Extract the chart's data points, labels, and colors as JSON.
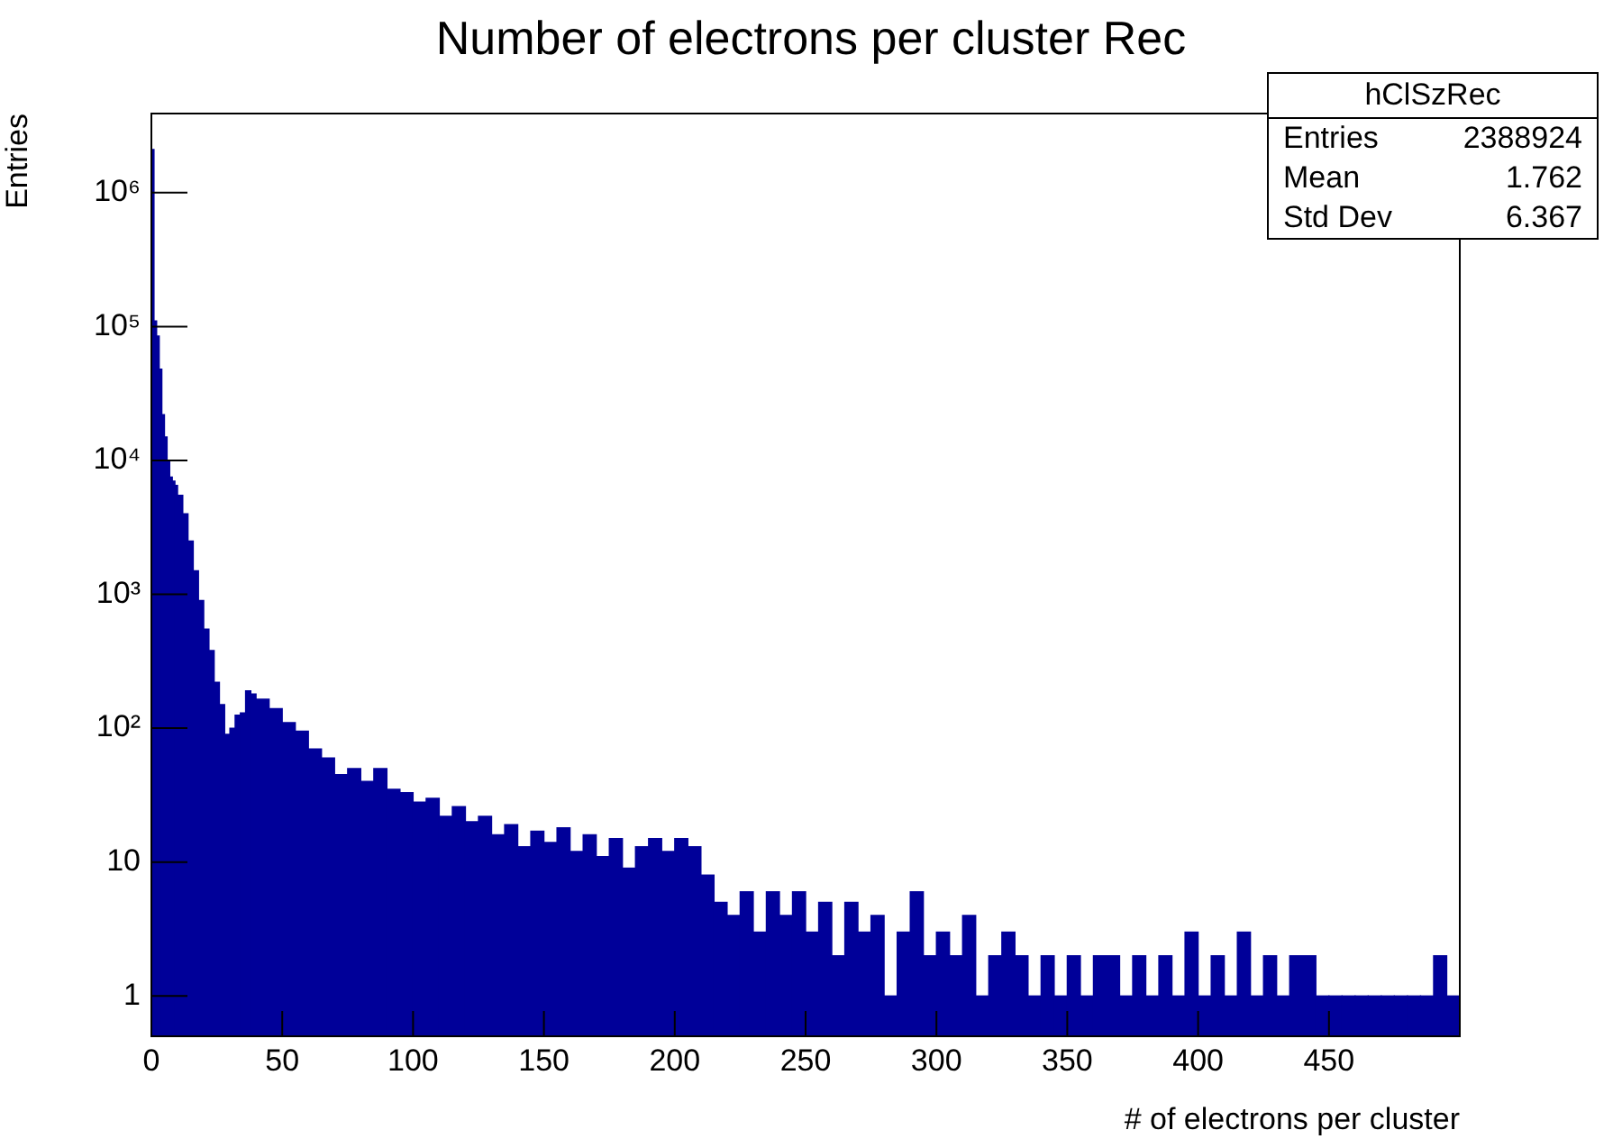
{
  "chart_data": {
    "type": "histogram",
    "title": "Number of electrons per cluster Rec",
    "xlabel": "# of electrons per cluster",
    "ylabel": "Entries",
    "bins": [
      0,
      1,
      2,
      3,
      4,
      5,
      6,
      7,
      8,
      9,
      10,
      12,
      14,
      16,
      18,
      20,
      22,
      24,
      26,
      28,
      30,
      32,
      34,
      36,
      38,
      40,
      45,
      50,
      55,
      60,
      65,
      70,
      75,
      80,
      85,
      90,
      95,
      100,
      105,
      110,
      115,
      120,
      125,
      130,
      135,
      140,
      145,
      150,
      155,
      160,
      165,
      170,
      175,
      180,
      185,
      190,
      195,
      200,
      205,
      210,
      215,
      220,
      225,
      230,
      235,
      240,
      245,
      250,
      255,
      260,
      265,
      270,
      275,
      280,
      285,
      290,
      295,
      300,
      305,
      310,
      315,
      320,
      325,
      330,
      335,
      340,
      345,
      350,
      355,
      360,
      365,
      370,
      375,
      380,
      385,
      390,
      395,
      400,
      405,
      410,
      415,
      420,
      425,
      430,
      435,
      440,
      445,
      450,
      455,
      460,
      465,
      470,
      475,
      480,
      485,
      490,
      495,
      500
    ],
    "values": [
      2100000,
      110000,
      85000,
      48000,
      22000,
      15000,
      10000,
      7500,
      7000,
      6500,
      5500,
      4000,
      2500,
      1500,
      900,
      550,
      380,
      220,
      150,
      90,
      100,
      125,
      130,
      190,
      180,
      165,
      140,
      110,
      95,
      70,
      60,
      45,
      50,
      40,
      50,
      35,
      33,
      28,
      30,
      22,
      26,
      20,
      22,
      16,
      19,
      13,
      17,
      14,
      18,
      12,
      16,
      11,
      15,
      9,
      13,
      15,
      12,
      15,
      13,
      8,
      5,
      4,
      6,
      3,
      6,
      4,
      6,
      3,
      5,
      2,
      5,
      3,
      4,
      1,
      3,
      6,
      2,
      3,
      2,
      4,
      1,
      2,
      3,
      2,
      1,
      2,
      1,
      2,
      1,
      2,
      2,
      1,
      2,
      1,
      2,
      1,
      3,
      1,
      2,
      1,
      3,
      1,
      2,
      1,
      2,
      2,
      1,
      1,
      1,
      1,
      1,
      1,
      1,
      1,
      1,
      2,
      1
    ],
    "color": "#000099",
    "log": "y",
    "xlim": [
      0,
      500
    ],
    "xticks": [
      0,
      50,
      100,
      150,
      200,
      250,
      300,
      350,
      400,
      450
    ],
    "ylim": [
      0.5,
      3900000
    ],
    "yticks": [
      1,
      10,
      {
        "value": 100,
        "label": "10²"
      },
      {
        "value": 1000,
        "label": "10³"
      },
      {
        "value": 10000,
        "label": "10⁴"
      },
      {
        "value": 100000,
        "label": "10⁵"
      },
      {
        "value": 1000000,
        "label": "10⁶"
      }
    ],
    "grid": false,
    "legend": false,
    "annotations": [
      "hClSzRec",
      "Entries 2388924",
      "Mean 1.762",
      "Std Dev 6.367"
    ]
  }
}
